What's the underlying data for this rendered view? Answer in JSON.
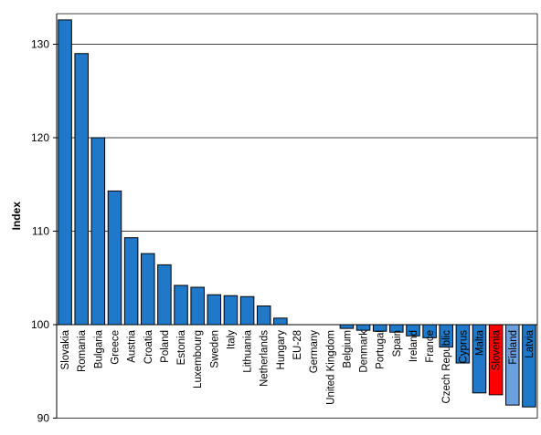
{
  "chart_data": {
    "type": "bar",
    "title": "",
    "xlabel": "",
    "ylabel": "Index",
    "baseline": 100,
    "ylim": [
      90,
      133
    ],
    "yticks": [
      "90",
      "100",
      "110",
      "120",
      "130"
    ],
    "grid": true,
    "legend": "none",
    "categories": [
      "Slovakia",
      "Romania",
      "Bulgaria",
      "Greece",
      "Austria",
      "Croatia",
      "Poland",
      "Estonia",
      "Luxembourg",
      "Sweden",
      "Italy",
      "Lithuania",
      "Netherlands",
      "Hungary",
      "EU-28",
      "Germany",
      "United Kingdom",
      "Belgium",
      "Denmark",
      "Portugal",
      "Spain",
      "Ireland",
      "France",
      "Czech Republic",
      "Cyprus",
      "Malta",
      "Slovenia",
      "Finland",
      "Latvia"
    ],
    "values": [
      132.6,
      129.0,
      120.0,
      114.3,
      109.3,
      107.6,
      106.4,
      104.2,
      104.0,
      103.2,
      103.1,
      103.0,
      102.0,
      100.7,
      100.0,
      100.0,
      100.0,
      99.6,
      99.4,
      99.3,
      99.2,
      98.8,
      98.6,
      97.6,
      95.9,
      92.7,
      92.5,
      91.4,
      91.2
    ],
    "bar_colors": [
      "#1f78c8",
      "#1f78c8",
      "#1f78c8",
      "#1f78c8",
      "#1f78c8",
      "#1f78c8",
      "#1f78c8",
      "#1f78c8",
      "#1f78c8",
      "#1f78c8",
      "#1f78c8",
      "#1f78c8",
      "#1f78c8",
      "#1f78c8",
      "#1f78c8",
      "#1f78c8",
      "#1f78c8",
      "#1f78c8",
      "#1f78c8",
      "#1f78c8",
      "#1f78c8",
      "#1f78c8",
      "#1f78c8",
      "#1f78c8",
      "#1f78c8",
      "#1f78c8",
      "#ff0000",
      "#6a9fe0",
      "#1f78c8"
    ],
    "colors": {
      "bar": "#1f78c8",
      "highlight": "#ff0000",
      "alt": "#6a9fe0",
      "grid": "#000000"
    }
  }
}
